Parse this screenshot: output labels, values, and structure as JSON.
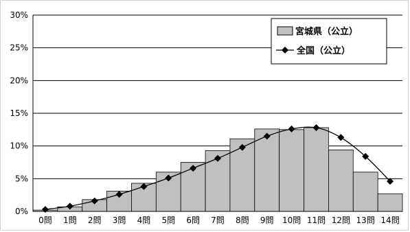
{
  "chart_data": {
    "type": "bar+line",
    "categories": [
      "0問",
      "1問",
      "2問",
      "3問",
      "4問",
      "5問",
      "6問",
      "7問",
      "8問",
      "9問",
      "10問",
      "11問",
      "12問",
      "13問",
      "14問"
    ],
    "series": [
      {
        "name": "宮城県（公立）",
        "kind": "bar",
        "values": [
          0.2,
          0.7,
          1.8,
          3.1,
          4.3,
          6.0,
          7.5,
          9.3,
          11.1,
          12.6,
          12.5,
          12.8,
          9.4,
          6.0,
          2.7
        ]
      },
      {
        "name": "全国（公立）",
        "kind": "line",
        "values": [
          0.3,
          0.8,
          1.6,
          2.6,
          3.8,
          5.1,
          6.6,
          8.1,
          9.8,
          11.5,
          12.6,
          12.8,
          11.3,
          8.4,
          4.6
        ]
      }
    ],
    "yticks": [
      "0%",
      "5%",
      "10%",
      "15%",
      "20%",
      "25%",
      "30%"
    ],
    "ylim": [
      0,
      30
    ],
    "grid": true,
    "legend_position": "top-right",
    "colors": {
      "bar_fill": "#c0c0c0",
      "bar_stroke": "#000000",
      "line": "#000000",
      "grid": "#000000"
    }
  }
}
